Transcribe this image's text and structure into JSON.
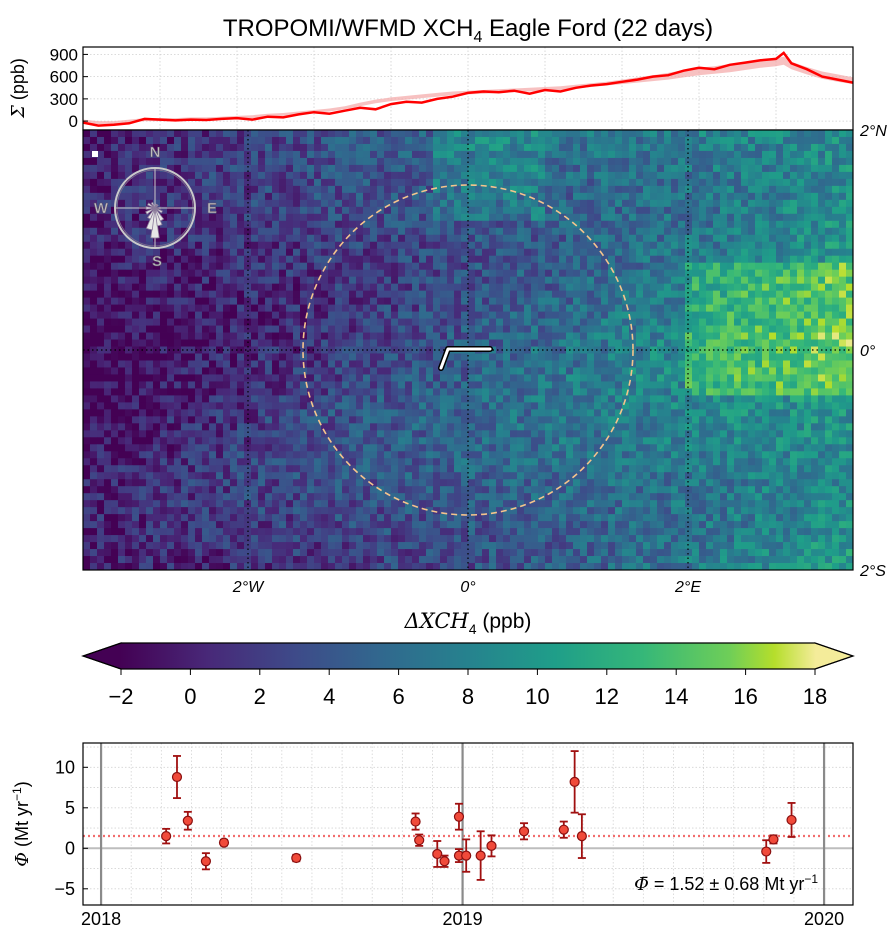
{
  "title": {
    "prefix": "TROPOMI/WFMD XCH",
    "sub": "4",
    "suffix": " Eagle Ford (22 days)"
  },
  "chart_data": [
    {
      "id": "cumulative-sum",
      "type": "line",
      "ylabel_symbol": "Σ",
      "ylabel_unit": " (ppb)",
      "yticks": [
        0,
        300,
        600,
        900
      ],
      "ylim": [
        -120,
        1000
      ],
      "x_fraction_range": [
        0,
        1
      ],
      "grid": true,
      "series": [
        {
          "role": "mean",
          "color": "#ff0000",
          "x": [
            0,
            0.02,
            0.04,
            0.06,
            0.08,
            0.1,
            0.12,
            0.14,
            0.16,
            0.18,
            0.2,
            0.22,
            0.24,
            0.26,
            0.28,
            0.3,
            0.32,
            0.34,
            0.36,
            0.38,
            0.4,
            0.42,
            0.44,
            0.46,
            0.48,
            0.5,
            0.52,
            0.54,
            0.56,
            0.58,
            0.6,
            0.62,
            0.64,
            0.66,
            0.68,
            0.7,
            0.72,
            0.74,
            0.76,
            0.78,
            0.8,
            0.82,
            0.84,
            0.86,
            0.88,
            0.9,
            0.91,
            0.92,
            0.94,
            0.96,
            0.98,
            1.0
          ],
          "y": [
            -20,
            -60,
            -50,
            -30,
            30,
            20,
            10,
            20,
            15,
            30,
            40,
            20,
            60,
            50,
            90,
            120,
            100,
            140,
            180,
            160,
            230,
            260,
            250,
            300,
            330,
            380,
            400,
            390,
            410,
            370,
            420,
            400,
            450,
            480,
            500,
            530,
            560,
            600,
            620,
            680,
            720,
            700,
            760,
            790,
            820,
            840,
            920,
            780,
            700,
            600,
            560,
            520
          ]
        },
        {
          "role": "band",
          "color": "#f4a7a7",
          "lower": [
            -20,
            -40,
            -40,
            -20,
            0,
            0,
            0,
            10,
            10,
            20,
            30,
            40,
            60,
            70,
            90,
            110,
            130,
            160,
            200,
            240,
            270,
            290,
            310,
            330,
            350,
            360,
            370,
            380,
            390,
            400,
            410,
            420,
            440,
            460,
            480,
            500,
            520,
            540,
            560,
            590,
            620,
            640,
            660,
            690,
            720,
            740,
            760,
            700,
            630,
            570,
            530,
            500
          ],
          "upper": [
            20,
            0,
            0,
            20,
            40,
            40,
            40,
            50,
            50,
            60,
            70,
            80,
            100,
            110,
            130,
            150,
            170,
            200,
            250,
            290,
            320,
            340,
            360,
            380,
            400,
            410,
            420,
            430,
            440,
            450,
            460,
            470,
            490,
            510,
            530,
            560,
            590,
            620,
            650,
            690,
            720,
            740,
            770,
            800,
            830,
            850,
            870,
            800,
            730,
            670,
            630,
            590
          ]
        }
      ]
    },
    {
      "id": "xch4-map",
      "type": "heatmap",
      "xlim_deg": [
        -3.5,
        3.5
      ],
      "ylim_deg": [
        -2,
        2
      ],
      "xtick_labels": [
        {
          "value": -2,
          "label": "2°W"
        },
        {
          "value": 0,
          "label": "0°"
        },
        {
          "value": 2,
          "label": "2°E"
        }
      ],
      "ytick_labels_right": [
        {
          "value": 2,
          "label": "2°N"
        },
        {
          "value": 0,
          "label": "0°"
        },
        {
          "value": -2,
          "label": "2°S"
        }
      ],
      "circle_radius_deg": 1.5,
      "compass": {
        "n": "N",
        "s": "S",
        "e": "E",
        "w": "W"
      },
      "colorbar": {
        "label_prefix": "ΔXCH",
        "label_sub": "4",
        "label_suffix": " (ppb)",
        "min": -2,
        "max": 18,
        "ticks": [
          -2,
          0,
          2,
          4,
          6,
          8,
          10,
          12,
          14,
          16,
          18
        ],
        "tick_labels": [
          "−2",
          "0",
          "2",
          "4",
          "6",
          "8",
          "10",
          "12",
          "14",
          "16",
          "18"
        ],
        "colormap": "viridis"
      }
    },
    {
      "id": "emission-estimates",
      "type": "scatter",
      "ylabel_symbol": "Φ",
      "ylabel_unit": " (Mt yr",
      "ylabel_exp": "−1",
      "ylabel_close": ")",
      "ylim": [
        -7,
        13
      ],
      "yticks": [
        -5,
        0,
        5,
        10
      ],
      "ytick_labels": [
        "−5",
        "0",
        "5",
        "10"
      ],
      "xlim": [
        2017.95,
        2020.08
      ],
      "xticks": [
        2018,
        2019,
        2020
      ],
      "xtick_labels": [
        "2018",
        "2019",
        "2020"
      ],
      "mean_line": 1.52,
      "points": [
        {
          "x": 2018.18,
          "y": 1.5,
          "err": 0.9
        },
        {
          "x": 2018.21,
          "y": 8.8,
          "err": 2.6
        },
        {
          "x": 2018.24,
          "y": 3.4,
          "err": 1.1
        },
        {
          "x": 2018.29,
          "y": -1.6,
          "err": 1.0
        },
        {
          "x": 2018.34,
          "y": 0.7,
          "err": 0.35
        },
        {
          "x": 2018.54,
          "y": -1.2,
          "err": 0.4
        },
        {
          "x": 2018.87,
          "y": 3.3,
          "err": 1.0
        },
        {
          "x": 2018.88,
          "y": 1.0,
          "err": 0.7
        },
        {
          "x": 2018.93,
          "y": -0.7,
          "err": 1.6
        },
        {
          "x": 2018.95,
          "y": -1.6,
          "err": 0.7
        },
        {
          "x": 2018.99,
          "y": 3.9,
          "err": 1.6
        },
        {
          "x": 2018.99,
          "y": -0.9,
          "err": 0.8
        },
        {
          "x": 2019.01,
          "y": -0.9,
          "err": 2.0
        },
        {
          "x": 2019.05,
          "y": -0.9,
          "err": 3.0
        },
        {
          "x": 2019.08,
          "y": 0.3,
          "err": 1.3
        },
        {
          "x": 2019.17,
          "y": 2.1,
          "err": 1.0
        },
        {
          "x": 2019.28,
          "y": 2.3,
          "err": 1.0
        },
        {
          "x": 2019.31,
          "y": 8.2,
          "err": 3.8
        },
        {
          "x": 2019.33,
          "y": 1.5,
          "err": 2.7
        },
        {
          "x": 2019.84,
          "y": -0.4,
          "err": 1.4
        },
        {
          "x": 2019.86,
          "y": 1.1,
          "err": 0.5
        },
        {
          "x": 2019.91,
          "y": 3.5,
          "err": 2.1
        }
      ],
      "annotation": {
        "prefix": " = 1.52 ± 0.68 Mt yr",
        "exp": "−1",
        "symbol": "Φ̄"
      }
    }
  ]
}
